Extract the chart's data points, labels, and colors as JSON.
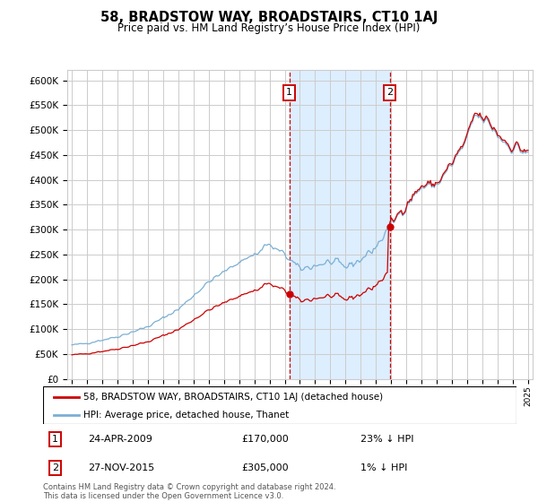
{
  "title": "58, BRADSTOW WAY, BROADSTAIRS, CT10 1AJ",
  "subtitle": "Price paid vs. HM Land Registry’s House Price Index (HPI)",
  "ylim": [
    0,
    620000
  ],
  "yticks": [
    0,
    50000,
    100000,
    150000,
    200000,
    250000,
    300000,
    350000,
    400000,
    450000,
    500000,
    550000,
    600000
  ],
  "xlim_start": 1994.7,
  "xlim_end": 2025.3,
  "legend_entries": [
    "58, BRADSTOW WAY, BROADSTAIRS, CT10 1AJ (detached house)",
    "HPI: Average price, detached house, Thanet"
  ],
  "legend_colors": [
    "#cc0000",
    "#7bafd4"
  ],
  "t1_year": 2009.3,
  "t1_price": 170000,
  "t2_year": 2015.9,
  "t2_price": 305000,
  "footer": "Contains HM Land Registry data © Crown copyright and database right 2024.\nThis data is licensed under the Open Government Licence v3.0.",
  "background_color": "#ffffff",
  "grid_color": "#cccccc",
  "hpi_line_color": "#7bafd4",
  "price_line_color": "#cc0000",
  "dashed_line_color": "#cc0000",
  "shaded_region_color": "#ddeeff",
  "annotation_box_color": "#cc0000",
  "ann1_date": "24-APR-2009",
  "ann1_price": "£170,000",
  "ann1_pct": "23% ↓ HPI",
  "ann2_date": "27-NOV-2015",
  "ann2_price": "£305,000",
  "ann2_pct": "1% ↓ HPI"
}
